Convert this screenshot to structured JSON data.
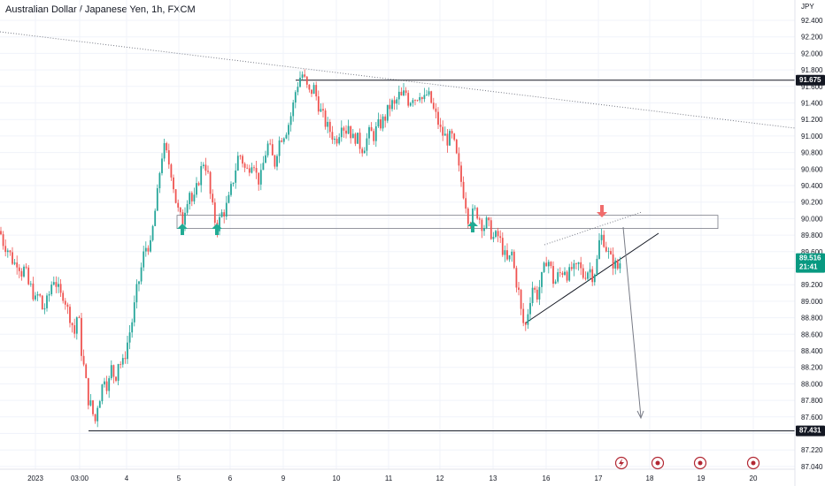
{
  "title": "Australian Dollar / Japanese Yen, 1h, FXCM",
  "currency": "JPY",
  "colors": {
    "up": "#26a69a",
    "down": "#ef5350",
    "last_price": "#089981",
    "level": "#131722",
    "marker": "#b22833"
  },
  "chart_data": {
    "type": "candlestick",
    "symbol": "AUDJPY",
    "timeframe": "1h",
    "source": "FXCM",
    "ylim": [
      86.9,
      92.55
    ],
    "y_ticks": [
      "92.400",
      "92.200",
      "92.000",
      "91.800",
      "91.600",
      "91.400",
      "91.200",
      "91.000",
      "90.800",
      "90.600",
      "90.400",
      "90.200",
      "90.000",
      "89.800",
      "89.600",
      "89.400",
      "89.200",
      "89.000",
      "88.800",
      "88.600",
      "88.400",
      "88.200",
      "88.000",
      "87.800",
      "87.600",
      "87.400",
      "87.220",
      "87.040"
    ],
    "x_ticks": [
      "2023",
      "03:00",
      "4",
      "5",
      "6",
      "9",
      "10",
      "11",
      "12",
      "13",
      "16",
      "17",
      "18",
      "19",
      "20"
    ],
    "series_path": [
      [
        0,
        89.85
      ],
      [
        4,
        89.7
      ],
      [
        8,
        89.65
      ],
      [
        12,
        89.55
      ],
      [
        16,
        89.45
      ],
      [
        20,
        89.5
      ],
      [
        24,
        89.35
      ],
      [
        28,
        89.4
      ],
      [
        32,
        89.2
      ],
      [
        36,
        89.15
      ],
      [
        40,
        89.0
      ],
      [
        44,
        89.1
      ],
      [
        48,
        88.9
      ],
      [
        52,
        88.95
      ],
      [
        56,
        89.1
      ],
      [
        60,
        89.3
      ],
      [
        64,
        89.2
      ],
      [
        68,
        89.05
      ],
      [
        72,
        89.1
      ],
      [
        76,
        88.9
      ],
      [
        80,
        88.8
      ],
      [
        84,
        88.6
      ],
      [
        88,
        88.9
      ],
      [
        92,
        88.4
      ],
      [
        96,
        88.1
      ],
      [
        100,
        87.8
      ],
      [
        104,
        87.7
      ],
      [
        107,
        87.5
      ],
      [
        110,
        87.75
      ],
      [
        114,
        87.9
      ],
      [
        118,
        88.1
      ],
      [
        122,
        87.95
      ],
      [
        126,
        88.2
      ],
      [
        130,
        88.05
      ],
      [
        134,
        88.3
      ],
      [
        138,
        88.2
      ],
      [
        142,
        88.4
      ],
      [
        146,
        88.6
      ],
      [
        150,
        88.8
      ],
      [
        154,
        89.1
      ],
      [
        158,
        89.3
      ],
      [
        162,
        89.55
      ],
      [
        166,
        89.7
      ],
      [
        170,
        89.65
      ],
      [
        174,
        90.0
      ],
      [
        178,
        90.3
      ],
      [
        182,
        90.75
      ],
      [
        186,
        90.85
      ],
      [
        190,
        90.7
      ],
      [
        194,
        90.55
      ],
      [
        198,
        90.25
      ],
      [
        202,
        90.05
      ],
      [
        206,
        89.95
      ],
      [
        210,
        90.2
      ],
      [
        214,
        90.35
      ],
      [
        218,
        90.15
      ],
      [
        222,
        90.35
      ],
      [
        226,
        90.55
      ],
      [
        230,
        90.7
      ],
      [
        234,
        90.6
      ],
      [
        238,
        90.25
      ],
      [
        242,
        90.0
      ],
      [
        246,
        89.9
      ],
      [
        250,
        90.05
      ],
      [
        254,
        90.1
      ],
      [
        258,
        90.2
      ],
      [
        262,
        90.4
      ],
      [
        266,
        90.6
      ],
      [
        270,
        90.8
      ],
      [
        274,
        90.7
      ],
      [
        278,
        90.55
      ],
      [
        282,
        90.65
      ],
      [
        286,
        90.75
      ],
      [
        290,
        90.5
      ],
      [
        294,
        90.45
      ],
      [
        298,
        90.7
      ],
      [
        302,
        90.9
      ],
      [
        306,
        90.8
      ],
      [
        310,
        90.65
      ],
      [
        314,
        90.9
      ],
      [
        318,
        91.0
      ],
      [
        322,
        91.05
      ],
      [
        326,
        91.15
      ],
      [
        330,
        91.3
      ],
      [
        334,
        91.55
      ],
      [
        338,
        91.7
      ],
      [
        342,
        91.75
      ],
      [
        346,
        91.6
      ],
      [
        350,
        91.5
      ],
      [
        354,
        91.6
      ],
      [
        358,
        91.45
      ],
      [
        362,
        91.3
      ],
      [
        366,
        91.2
      ],
      [
        370,
        91.1
      ],
      [
        374,
        91.05
      ],
      [
        378,
        90.95
      ],
      [
        382,
        91.0
      ],
      [
        386,
        91.2
      ],
      [
        390,
        91.05
      ],
      [
        394,
        91.15
      ],
      [
        398,
        90.95
      ],
      [
        402,
        91.0
      ],
      [
        406,
        90.9
      ],
      [
        410,
        90.85
      ],
      [
        414,
        90.95
      ],
      [
        418,
        91.05
      ],
      [
        422,
        91.0
      ],
      [
        426,
        91.1
      ],
      [
        430,
        91.15
      ],
      [
        434,
        91.2
      ],
      [
        438,
        91.3
      ],
      [
        442,
        91.4
      ],
      [
        446,
        91.35
      ],
      [
        450,
        91.5
      ],
      [
        454,
        91.45
      ],
      [
        458,
        91.55
      ],
      [
        462,
        91.4
      ],
      [
        466,
        91.5
      ],
      [
        470,
        91.45
      ],
      [
        474,
        91.55
      ],
      [
        478,
        91.4
      ],
      [
        482,
        91.5
      ],
      [
        486,
        91.45
      ],
      [
        490,
        91.3
      ],
      [
        494,
        91.2
      ],
      [
        498,
        91.05
      ],
      [
        502,
        91.0
      ],
      [
        506,
        90.95
      ],
      [
        510,
        91.0
      ],
      [
        514,
        90.85
      ],
      [
        518,
        90.6
      ],
      [
        522,
        90.4
      ],
      [
        526,
        90.2
      ],
      [
        530,
        89.95
      ],
      [
        534,
        90.05
      ],
      [
        538,
        90.1
      ],
      [
        542,
        90.0
      ],
      [
        546,
        89.9
      ],
      [
        550,
        89.95
      ],
      [
        554,
        89.85
      ],
      [
        558,
        89.75
      ],
      [
        562,
        89.8
      ],
      [
        566,
        89.7
      ],
      [
        570,
        89.55
      ],
      [
        574,
        89.45
      ],
      [
        578,
        89.6
      ],
      [
        582,
        89.3
      ],
      [
        586,
        89.1
      ],
      [
        590,
        88.75
      ],
      [
        594,
        88.7
      ],
      [
        598,
        89.0
      ],
      [
        602,
        89.2
      ],
      [
        606,
        89.05
      ],
      [
        610,
        89.2
      ],
      [
        614,
        89.35
      ],
      [
        618,
        89.55
      ],
      [
        622,
        89.4
      ],
      [
        626,
        89.2
      ],
      [
        630,
        89.3
      ],
      [
        634,
        89.35
      ],
      [
        638,
        89.4
      ],
      [
        642,
        89.3
      ],
      [
        646,
        89.4
      ],
      [
        650,
        89.35
      ],
      [
        654,
        89.45
      ],
      [
        658,
        89.3
      ],
      [
        662,
        89.35
      ],
      [
        666,
        89.4
      ],
      [
        670,
        89.3
      ],
      [
        674,
        89.45
      ],
      [
        678,
        89.8
      ],
      [
        682,
        89.75
      ],
      [
        686,
        89.6
      ],
      [
        690,
        89.5
      ],
      [
        694,
        89.45
      ],
      [
        698,
        89.4
      ],
      [
        702,
        89.52
      ]
    ],
    "levels": [
      {
        "label": "91.675",
        "price": 91.675
      },
      {
        "label": "87.431",
        "price": 87.431
      }
    ],
    "last_price": {
      "price_label": "89.516",
      "countdown": "21:41",
      "price": 89.516
    },
    "resistance_zone": [
      89.88,
      90.04
    ],
    "events": [
      "lightning",
      "event",
      "event",
      "event"
    ]
  }
}
